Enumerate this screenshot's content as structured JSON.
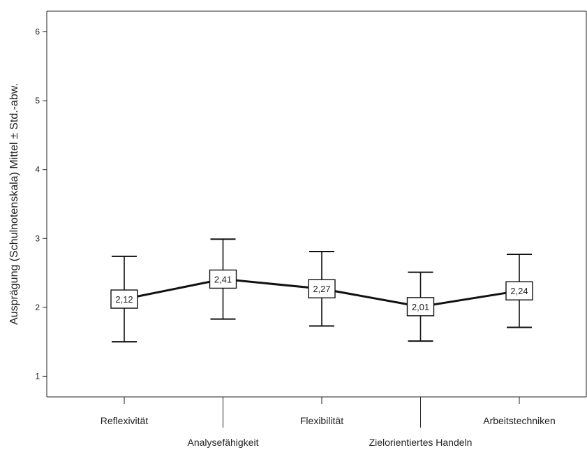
{
  "chart_data": {
    "type": "line",
    "ylabel": "Ausprägung (Schulnotenskala) Mittel ± Std.-abw.",
    "xlabel": "",
    "ylim": [
      0.7,
      6.3
    ],
    "yticks": [
      1,
      2,
      3,
      4,
      5,
      6
    ],
    "grid": false,
    "categories": [
      "Reflexivität",
      "Analysefähigkeit",
      "Flexibilität",
      "Zielorientiertes Handeln",
      "Arbeitstechniken"
    ],
    "series": [
      {
        "means": [
          2.12,
          2.41,
          2.27,
          2.01,
          2.24
        ],
        "mean_labels": [
          "2,12",
          "2,41",
          "2,27",
          "2,01",
          "2,24"
        ],
        "upper": [
          2.74,
          2.99,
          2.81,
          2.51,
          2.77
        ],
        "lower": [
          1.5,
          1.83,
          1.73,
          1.51,
          1.71
        ]
      }
    ]
  }
}
